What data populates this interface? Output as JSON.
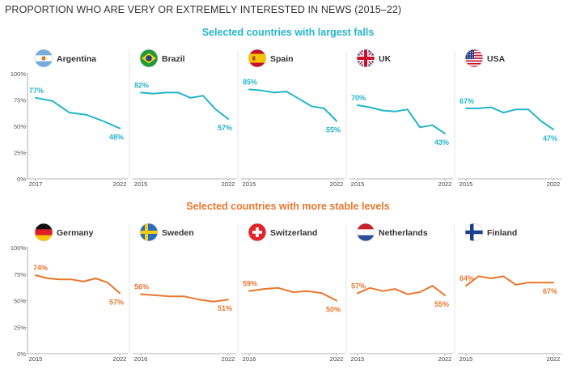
{
  "page_title": "PROPORTION WHO ARE VERY OR EXTREMELY INTERESTED IN NEWS (2015–22)",
  "groups": [
    {
      "subtitle": "Selected countries with largest falls",
      "color": "#23b5c9"
    },
    {
      "subtitle": "Selected countries with more stable levels",
      "color": "#e8772e"
    }
  ],
  "chart_data": [
    {
      "type": "line",
      "country": "Argentina",
      "flag": "argentina-flag-icon",
      "group": 0,
      "x": [
        2017,
        2018,
        2019,
        2020,
        2021,
        2022
      ],
      "y": [
        77,
        74,
        63,
        61,
        55,
        48
      ],
      "x_ticks": [
        "2017",
        "2022"
      ],
      "y_ticks": [
        "100%",
        "75%",
        "50%",
        "25%",
        "0%"
      ],
      "ylim": [
        0,
        100
      ],
      "labels": [
        {
          "i": 0,
          "text": "77%"
        },
        {
          "i": 5,
          "text": "48%"
        }
      ]
    },
    {
      "type": "line",
      "country": "Brazil",
      "flag": "brazil-flag-icon",
      "group": 0,
      "x": [
        2015,
        2016,
        2017,
        2018,
        2019,
        2020,
        2021,
        2022
      ],
      "y": [
        82,
        81,
        82,
        82,
        77,
        79,
        66,
        57
      ],
      "x_ticks": [
        "2015",
        "2022"
      ],
      "ylim": [
        0,
        100
      ],
      "labels": [
        {
          "i": 0,
          "text": "82%"
        },
        {
          "i": 7,
          "text": "57%"
        }
      ]
    },
    {
      "type": "line",
      "country": "Spain",
      "flag": "spain-flag-icon",
      "group": 0,
      "x": [
        2015,
        2016,
        2017,
        2018,
        2019,
        2020,
        2021,
        2022
      ],
      "y": [
        85,
        84,
        82,
        83,
        76,
        69,
        67,
        55
      ],
      "x_ticks": [
        "2015",
        "2022"
      ],
      "ylim": [
        0,
        100
      ],
      "labels": [
        {
          "i": 0,
          "text": "85%"
        },
        {
          "i": 7,
          "text": "55%"
        }
      ]
    },
    {
      "type": "line",
      "country": "UK",
      "flag": "uk-flag-icon",
      "group": 0,
      "x": [
        2015,
        2016,
        2017,
        2018,
        2019,
        2020,
        2021,
        2022
      ],
      "y": [
        70,
        68,
        65,
        64,
        66,
        49,
        51,
        43
      ],
      "x_ticks": [
        "2015",
        "2022"
      ],
      "ylim": [
        0,
        100
      ],
      "labels": [
        {
          "i": 0,
          "text": "70%"
        },
        {
          "i": 7,
          "text": "43%"
        }
      ]
    },
    {
      "type": "line",
      "country": "USA",
      "flag": "usa-flag-icon",
      "group": 0,
      "x": [
        2015,
        2016,
        2017,
        2018,
        2019,
        2020,
        2021,
        2022
      ],
      "y": [
        67,
        67,
        68,
        63,
        66,
        66,
        55,
        47
      ],
      "x_ticks": [
        "2015",
        "2022"
      ],
      "ylim": [
        0,
        100
      ],
      "labels": [
        {
          "i": 0,
          "text": "67%"
        },
        {
          "i": 7,
          "text": "47%"
        }
      ]
    },
    {
      "type": "line",
      "country": "Germany",
      "flag": "germany-flag-icon",
      "group": 1,
      "x": [
        2015,
        2016,
        2017,
        2018,
        2019,
        2020,
        2021,
        2022
      ],
      "y": [
        74,
        71,
        70,
        70,
        68,
        71,
        67,
        57
      ],
      "x_ticks": [
        "2015",
        "2022"
      ],
      "y_ticks": [
        "100%",
        "75%",
        "50%",
        "25%",
        "0%"
      ],
      "ylim": [
        0,
        100
      ],
      "labels": [
        {
          "i": 0,
          "text": "74%"
        },
        {
          "i": 7,
          "text": "57%"
        }
      ]
    },
    {
      "type": "line",
      "country": "Sweden",
      "flag": "sweden-flag-icon",
      "group": 1,
      "x": [
        2016,
        2017,
        2018,
        2019,
        2020,
        2021,
        2022
      ],
      "y": [
        56,
        55,
        54,
        54,
        51,
        49,
        51
      ],
      "x_ticks": [
        "2016",
        "2022"
      ],
      "ylim": [
        0,
        100
      ],
      "labels": [
        {
          "i": 0,
          "text": "56%"
        },
        {
          "i": 6,
          "text": "51%"
        }
      ]
    },
    {
      "type": "line",
      "country": "Switzerland",
      "flag": "switzerland-flag-icon",
      "group": 1,
      "x": [
        2016,
        2017,
        2018,
        2019,
        2020,
        2021,
        2022
      ],
      "y": [
        59,
        61,
        62,
        58,
        59,
        57,
        50
      ],
      "x_ticks": [
        "2016",
        "2022"
      ],
      "ylim": [
        0,
        100
      ],
      "labels": [
        {
          "i": 0,
          "text": "59%"
        },
        {
          "i": 6,
          "text": "50%"
        }
      ]
    },
    {
      "type": "line",
      "country": "Netherlands",
      "flag": "netherlands-flag-icon",
      "group": 1,
      "x": [
        2015,
        2016,
        2017,
        2018,
        2019,
        2020,
        2021,
        2022
      ],
      "y": [
        57,
        62,
        59,
        61,
        56,
        58,
        64,
        55
      ],
      "x_ticks": [
        "2015",
        "2022"
      ],
      "ylim": [
        0,
        100
      ],
      "labels": [
        {
          "i": 0,
          "text": "57%"
        },
        {
          "i": 7,
          "text": "55%"
        }
      ]
    },
    {
      "type": "line",
      "country": "Finland",
      "flag": "finland-flag-icon",
      "group": 1,
      "x": [
        2015,
        2016,
        2017,
        2018,
        2019,
        2020,
        2021,
        2022
      ],
      "y": [
        64,
        73,
        71,
        73,
        65,
        67,
        67,
        67
      ],
      "x_ticks": [
        "2015",
        "2022"
      ],
      "ylim": [
        0,
        100
      ],
      "labels": [
        {
          "i": 0,
          "text": "64%"
        },
        {
          "i": 7,
          "text": "67%"
        }
      ]
    }
  ]
}
